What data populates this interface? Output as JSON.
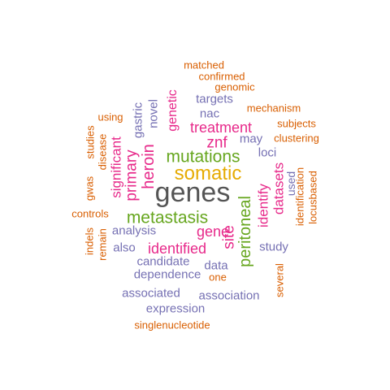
{
  "colors": {
    "orange": "#d95f02",
    "purple": "#7570b3",
    "magenta": "#e7298a",
    "green": "#66a61e",
    "gold": "#e6ab02",
    "gray": "#555555"
  },
  "words": [
    {
      "key": "genes",
      "text": "genes",
      "color": "gray"
    },
    {
      "key": "somatic",
      "text": "somatic",
      "color": "gold"
    },
    {
      "key": "mutations",
      "text": "mutations",
      "color": "green"
    },
    {
      "key": "metastasis",
      "text": "metastasis",
      "color": "green"
    },
    {
      "key": "peritoneal",
      "text": "peritoneal",
      "color": "green"
    },
    {
      "key": "treatment",
      "text": "treatment",
      "color": "magenta"
    },
    {
      "key": "heroin",
      "text": "heroin",
      "color": "magenta"
    },
    {
      "key": "primary",
      "text": "primary",
      "color": "magenta"
    },
    {
      "key": "significant",
      "text": "significant",
      "color": "magenta"
    },
    {
      "key": "znf",
      "text": "znf",
      "color": "magenta"
    },
    {
      "key": "gene",
      "text": "gene",
      "color": "magenta"
    },
    {
      "key": "identified",
      "text": "identified",
      "color": "magenta"
    },
    {
      "key": "site",
      "text": "site",
      "color": "magenta"
    },
    {
      "key": "identify",
      "text": "identify",
      "color": "magenta"
    },
    {
      "key": "datasets",
      "text": "datasets",
      "color": "magenta"
    },
    {
      "key": "genetic",
      "text": "genetic",
      "color": "magenta"
    },
    {
      "key": "targets",
      "text": "targets",
      "color": "purple"
    },
    {
      "key": "nac",
      "text": "nac",
      "color": "purple"
    },
    {
      "key": "gastric",
      "text": "gastric",
      "color": "purple"
    },
    {
      "key": "novel",
      "text": "novel",
      "color": "purple"
    },
    {
      "key": "may",
      "text": "may",
      "color": "purple"
    },
    {
      "key": "loci",
      "text": "loci",
      "color": "purple"
    },
    {
      "key": "used",
      "text": "used",
      "color": "purple"
    },
    {
      "key": "analysis",
      "text": "analysis",
      "color": "purple"
    },
    {
      "key": "also",
      "text": "also",
      "color": "purple"
    },
    {
      "key": "study",
      "text": "study",
      "color": "purple"
    },
    {
      "key": "candidate",
      "text": "candidate",
      "color": "purple"
    },
    {
      "key": "data",
      "text": "data",
      "color": "purple"
    },
    {
      "key": "dependence",
      "text": "dependence",
      "color": "purple"
    },
    {
      "key": "associated",
      "text": "associated",
      "color": "purple"
    },
    {
      "key": "association",
      "text": "association",
      "color": "purple"
    },
    {
      "key": "expression",
      "text": "expression",
      "color": "purple"
    },
    {
      "key": "matched",
      "text": "matched",
      "color": "orange"
    },
    {
      "key": "confirmed",
      "text": "confirmed",
      "color": "orange"
    },
    {
      "key": "genomic",
      "text": "genomic",
      "color": "orange"
    },
    {
      "key": "mechanism",
      "text": "mechanism",
      "color": "orange"
    },
    {
      "key": "subjects",
      "text": "subjects",
      "color": "orange"
    },
    {
      "key": "clustering",
      "text": "clustering",
      "color": "orange"
    },
    {
      "key": "using",
      "text": "using",
      "color": "orange"
    },
    {
      "key": "studies",
      "text": "studies",
      "color": "orange"
    },
    {
      "key": "disease",
      "text": "disease",
      "color": "orange"
    },
    {
      "key": "gwas",
      "text": "gwas",
      "color": "orange"
    },
    {
      "key": "controls",
      "text": "controls",
      "color": "orange"
    },
    {
      "key": "indels",
      "text": "indels",
      "color": "orange"
    },
    {
      "key": "remain",
      "text": "remain",
      "color": "orange"
    },
    {
      "key": "identification",
      "text": "identification",
      "color": "orange"
    },
    {
      "key": "locusbased",
      "text": "locusbased",
      "color": "orange"
    },
    {
      "key": "several",
      "text": "several",
      "color": "orange"
    },
    {
      "key": "one",
      "text": "one",
      "color": "orange"
    },
    {
      "key": "singlenucleotide",
      "text": "singlenucleotide",
      "color": "orange"
    }
  ]
}
